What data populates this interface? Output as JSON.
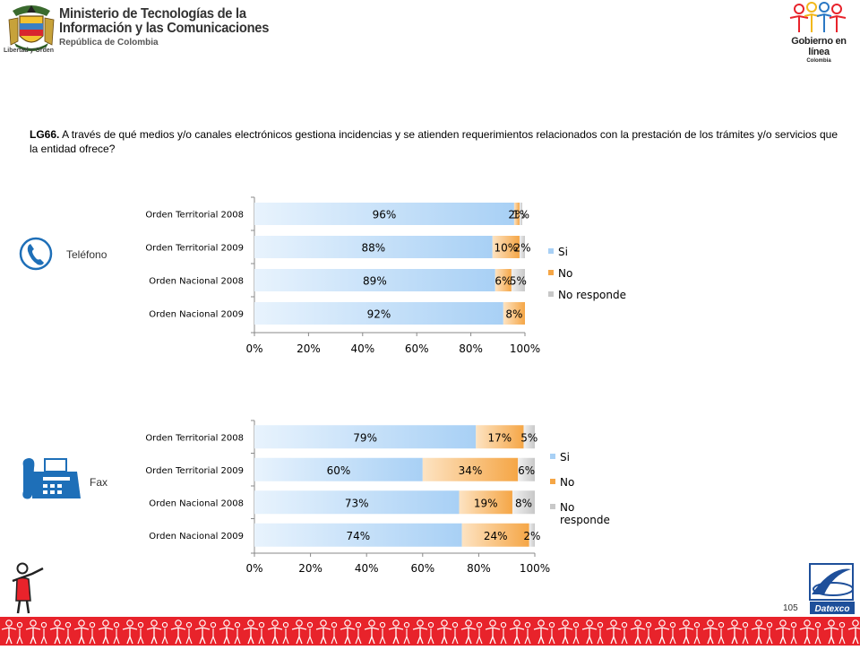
{
  "header": {
    "ministry_line1": "Ministerio de Tecnologías de la",
    "ministry_line2": "Información y las Comunicaciones",
    "ministry_line3": "República de Colombia",
    "motto": "Libertad y Orden",
    "gel_title": "Gobierno en línea",
    "gel_country": "Colombia"
  },
  "question": {
    "code": "LG66.",
    "text": " A través de qué medios y/o canales electrónicos gestiona incidencias y se atienden  requerimientos relacionados con la prestación de los trámites y/o servicios que la entidad ofrece?"
  },
  "labels": {
    "telefono": "Teléfono",
    "fax": "Fax"
  },
  "footer": {
    "page_number": "105",
    "brand": "Datexco"
  },
  "colors": {
    "si": "#a8d0f5",
    "no": "#f5a646",
    "no_responde": "#c8c8c8",
    "footer_band": "#e8232b"
  },
  "chart_data": [
    {
      "type": "bar",
      "orientation": "horizontal",
      "stacked": true,
      "categories": [
        "Orden Territorial 2008",
        "Orden Territorial 2009",
        "Orden Nacional 2008",
        "Orden Nacional 2009"
      ],
      "series": [
        {
          "name": "Si",
          "values": [
            96,
            88,
            89,
            92
          ],
          "labels": [
            "96%",
            "88%",
            "89%",
            "92%"
          ]
        },
        {
          "name": "No",
          "values": [
            2,
            10,
            6,
            8
          ],
          "labels": [
            "2%",
            "10%",
            "6%",
            "8%"
          ]
        },
        {
          "name": "No responde",
          "values": [
            1,
            2,
            5,
            0
          ],
          "labels": [
            "1%",
            "2%",
            "5%",
            ""
          ]
        }
      ],
      "xticks": [
        "0%",
        "20%",
        "40%",
        "60%",
        "80%",
        "100%"
      ],
      "xlim": [
        0,
        100
      ],
      "legend": "right"
    },
    {
      "type": "bar",
      "orientation": "horizontal",
      "stacked": true,
      "categories": [
        "Orden Territorial 2008",
        "Orden Territorial 2009",
        "Orden Nacional 2008",
        "Orden Nacional 2009"
      ],
      "series": [
        {
          "name": "Si",
          "values": [
            79,
            60,
            73,
            74
          ],
          "labels": [
            "79%",
            "60%",
            "73%",
            "74%"
          ]
        },
        {
          "name": "No",
          "values": [
            17,
            34,
            19,
            24
          ],
          "labels": [
            "17%",
            "34%",
            "19%",
            "24%"
          ]
        },
        {
          "name": "No responde",
          "values": [
            5,
            6,
            8,
            2
          ],
          "labels": [
            "5%",
            "6%",
            "8%",
            "2%"
          ]
        }
      ],
      "xticks": [
        "0%",
        "20%",
        "40%",
        "60%",
        "80%",
        "100%"
      ],
      "xlim": [
        0,
        100
      ],
      "legend": "right",
      "legend_labels": [
        "Si",
        "No",
        "No",
        "responde"
      ]
    }
  ]
}
